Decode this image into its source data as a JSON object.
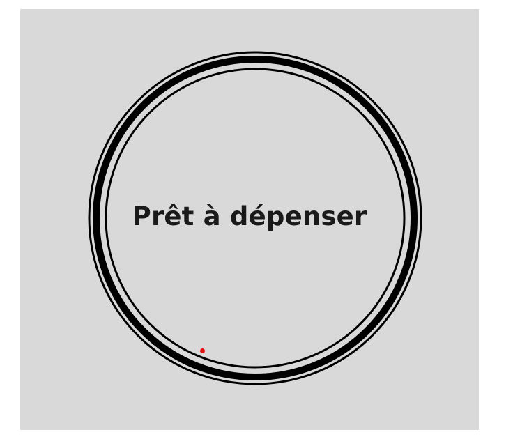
{
  "status": {
    "label": "Prêt à dépenser"
  },
  "colors": {
    "background": "#d9d9d9",
    "ring": "#000000",
    "text": "#1a1a1a",
    "cursor": "#e01010"
  }
}
